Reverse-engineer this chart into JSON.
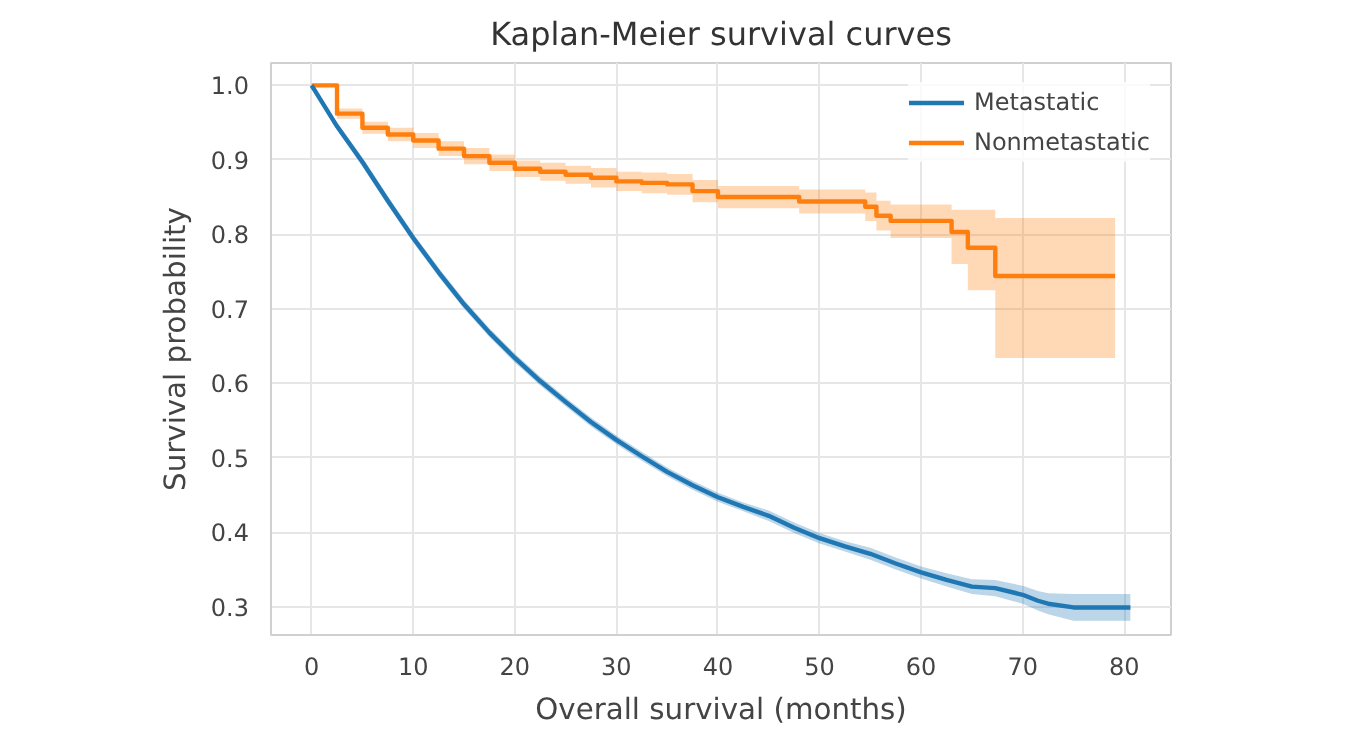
{
  "chart_data": {
    "type": "step",
    "title": "Kaplan-Meier survival curves",
    "xlabel": "Overall survival (months)",
    "ylabel": "Survival probability",
    "xlim": [
      -4,
      84.6
    ],
    "ylim": [
      0.262,
      1.03
    ],
    "xticks": [
      0,
      10,
      20,
      30,
      40,
      50,
      60,
      70,
      80
    ],
    "yticks": [
      {
        "value": 0.3,
        "label": "0.3"
      },
      {
        "value": 0.4,
        "label": "0.4"
      },
      {
        "value": 0.5,
        "label": "0.5"
      },
      {
        "value": 0.6,
        "label": "0.6"
      },
      {
        "value": 0.7,
        "label": "0.7"
      },
      {
        "value": 0.8,
        "label": "0.8"
      },
      {
        "value": 0.9,
        "label": "0.9"
      },
      {
        "value": 1.0,
        "label": "1.0"
      }
    ],
    "grid": true,
    "legend": "top right",
    "series": [
      {
        "name": "Metastatic",
        "type": "line",
        "color": "#1f77b4",
        "x": [
          0,
          2.5,
          5,
          7.5,
          10,
          12.5,
          15,
          17.5,
          20,
          22.5,
          25,
          27.5,
          30,
          32.5,
          35,
          37.5,
          40,
          42.5,
          45,
          47.5,
          50,
          52.5,
          55,
          57.5,
          60,
          62.5,
          65,
          67.3,
          70,
          71.5,
          72.5,
          75,
          80.6
        ],
        "values": [
          1.0,
          0.945,
          0.897,
          0.845,
          0.795,
          0.749,
          0.706,
          0.668,
          0.634,
          0.603,
          0.575,
          0.548,
          0.524,
          0.502,
          0.481,
          0.463,
          0.447,
          0.434,
          0.422,
          0.406,
          0.392,
          0.381,
          0.371,
          0.358,
          0.346,
          0.336,
          0.327,
          0.325,
          0.316,
          0.308,
          0.304,
          0.299,
          0.299
        ],
        "lower": [
          1.0,
          0.94,
          0.891,
          0.839,
          0.789,
          0.743,
          0.7,
          0.662,
          0.628,
          0.597,
          0.569,
          0.542,
          0.518,
          0.496,
          0.475,
          0.457,
          0.441,
          0.428,
          0.415,
          0.399,
          0.385,
          0.374,
          0.363,
          0.35,
          0.338,
          0.327,
          0.317,
          0.314,
          0.304,
          0.295,
          0.29,
          0.281,
          0.281
        ],
        "upper": [
          1.0,
          0.95,
          0.903,
          0.851,
          0.801,
          0.755,
          0.712,
          0.674,
          0.64,
          0.609,
          0.581,
          0.554,
          0.53,
          0.508,
          0.487,
          0.469,
          0.453,
          0.44,
          0.429,
          0.413,
          0.399,
          0.388,
          0.379,
          0.366,
          0.354,
          0.345,
          0.337,
          0.336,
          0.328,
          0.321,
          0.318,
          0.317,
          0.317
        ]
      },
      {
        "name": "Nonmetastatic",
        "color": "#ff7f0e",
        "x": [
          0,
          2.5,
          5,
          7.5,
          10,
          12.5,
          15,
          17.5,
          20,
          22.5,
          25,
          27.5,
          30,
          32.5,
          35,
          37.5,
          40,
          48,
          54.5,
          55.6,
          57,
          63,
          64.6,
          67.3,
          79.1
        ],
        "values": [
          1.0,
          0.962,
          0.943,
          0.934,
          0.926,
          0.915,
          0.905,
          0.896,
          0.888,
          0.884,
          0.88,
          0.876,
          0.871,
          0.869,
          0.867,
          0.858,
          0.85,
          0.844,
          0.837,
          0.825,
          0.818,
          0.803,
          0.782,
          0.744,
          0.744
        ],
        "lower": [
          1.0,
          0.955,
          0.935,
          0.925,
          0.916,
          0.905,
          0.894,
          0.885,
          0.877,
          0.872,
          0.868,
          0.863,
          0.858,
          0.855,
          0.853,
          0.843,
          0.835,
          0.828,
          0.818,
          0.805,
          0.795,
          0.76,
          0.725,
          0.634,
          0.634
        ],
        "upper": [
          1.0,
          0.969,
          0.951,
          0.943,
          0.936,
          0.925,
          0.916,
          0.907,
          0.899,
          0.896,
          0.892,
          0.889,
          0.884,
          0.883,
          0.881,
          0.873,
          0.865,
          0.86,
          0.856,
          0.845,
          0.84,
          0.833,
          0.833,
          0.822,
          0.822
        ]
      }
    ]
  }
}
